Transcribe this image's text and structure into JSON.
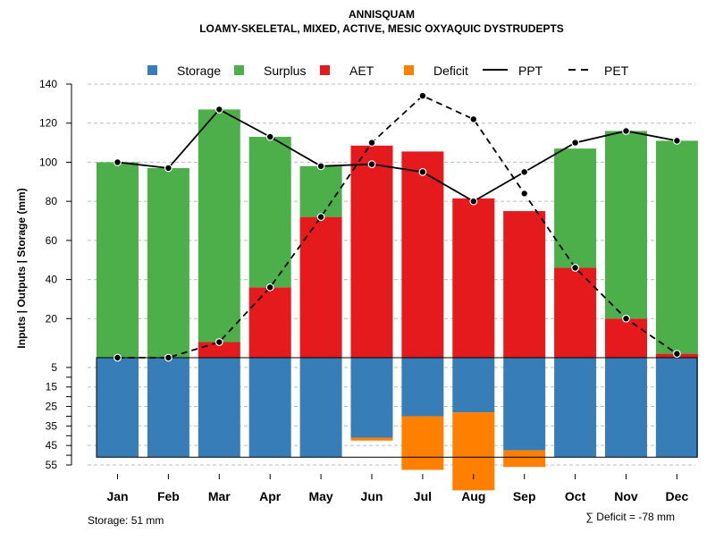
{
  "chart_data": {
    "type": "bar",
    "title": "ANNISQUAM",
    "subtitle": "LOAMY-SKELETAL, MIXED, ACTIVE, MESIC OXYAQUIC DYSTRUDEPTS",
    "ylabel": "Inputs | Outputs | Storage    (mm)",
    "categories": [
      "Jan",
      "Feb",
      "Mar",
      "Apr",
      "May",
      "Jun",
      "Jul",
      "Aug",
      "Sep",
      "Oct",
      "Nov",
      "Dec"
    ],
    "upper_ylim": [
      0,
      140
    ],
    "upper_ticks": [
      "20",
      "40",
      "60",
      "80",
      "100",
      "120",
      "140"
    ],
    "lower_ylim": [
      0,
      55
    ],
    "lower_ticks": [
      "5",
      "15",
      "25",
      "35",
      "45",
      "55"
    ],
    "series": [
      {
        "name": "AET",
        "color": "#E41A1C",
        "values": [
          0,
          0,
          8,
          36,
          72,
          108.5,
          105.5,
          81.5,
          75,
          46,
          20,
          2
        ]
      },
      {
        "name": "Surplus",
        "color": "#4DAF4A",
        "values": [
          100,
          97,
          119,
          77,
          26,
          0,
          0,
          0,
          0,
          61,
          96,
          109
        ]
      },
      {
        "name": "Storage",
        "color": "#377EB8",
        "values": [
          51,
          51,
          51,
          51,
          51,
          41,
          30,
          28,
          47.5,
          51,
          51,
          51
        ]
      },
      {
        "name": "Deficit",
        "color": "#FF7F00",
        "values": [
          0,
          0,
          0,
          0,
          0,
          1.5,
          27.5,
          40,
          8.5,
          0,
          0,
          0
        ]
      },
      {
        "name": "PPT",
        "color": "#000000",
        "style": "solid",
        "values": [
          100,
          97,
          127,
          113,
          98,
          99,
          95,
          80,
          95,
          110,
          116,
          111
        ]
      },
      {
        "name": "PET",
        "color": "#000000",
        "style": "dashed",
        "values": [
          0,
          0,
          8,
          36,
          72,
          110,
          134,
          122,
          84,
          46,
          20,
          2
        ]
      }
    ],
    "legend": [
      "Storage",
      "Surplus",
      "AET",
      "Deficit",
      "PPT",
      "PET"
    ],
    "storage_capacity": 51,
    "storage_note": "Storage: 51 mm",
    "deficit_note": "∑ Deficit = -78 mm"
  }
}
